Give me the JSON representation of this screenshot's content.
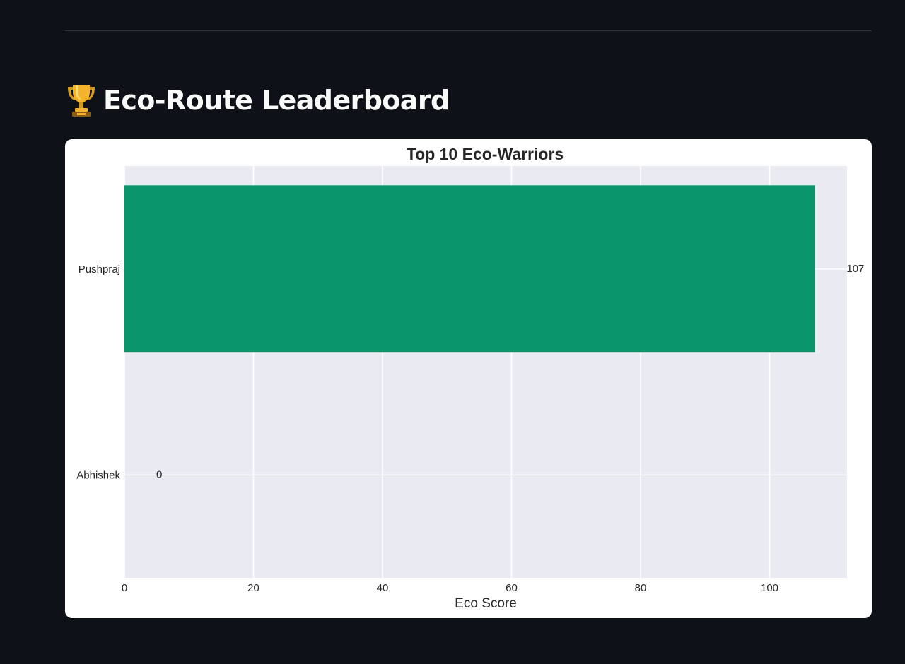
{
  "header": {
    "title": "Eco-Route Leaderboard",
    "icon": "trophy-icon"
  },
  "colors": {
    "page_background": "#0e1117",
    "card_background": "#ffffff",
    "plot_background": "#eaeaf2",
    "grid": "#ffffff",
    "bar": "#0a966a",
    "text": "#262626"
  },
  "chart_data": {
    "type": "bar",
    "orientation": "horizontal",
    "title": "Top 10 Eco-Warriors",
    "xlabel": "Eco Score",
    "ylabel": "",
    "categories": [
      "Pushpraj",
      "Abhishek"
    ],
    "values": [
      107,
      0
    ],
    "xlim": [
      0,
      112
    ],
    "xticks": [
      0,
      20,
      40,
      60,
      80,
      100
    ],
    "grid": true,
    "legend": "none",
    "data_labels": [
      "107",
      "0"
    ]
  }
}
